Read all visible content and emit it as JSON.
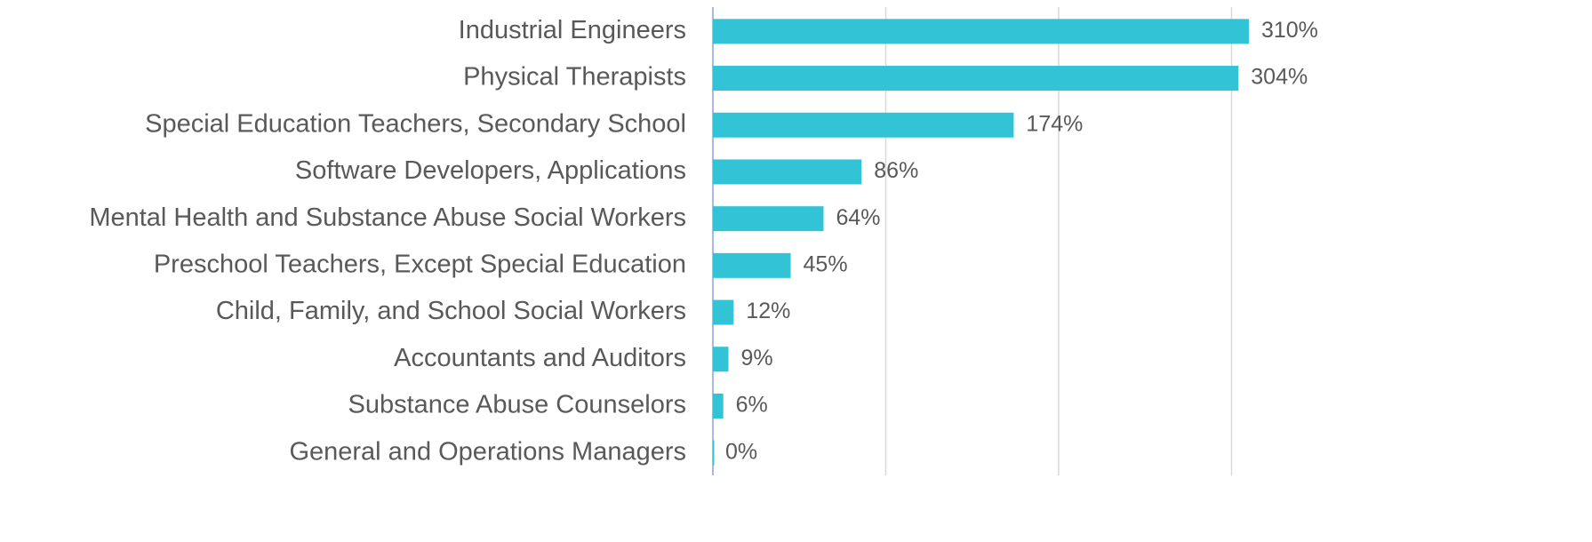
{
  "chart_data": {
    "type": "bar",
    "orientation": "horizontal",
    "categories": [
      "Industrial Engineers",
      "Physical Therapists",
      "Special Education Teachers, Secondary School",
      "Software Developers, Applications",
      "Mental Health and Substance Abuse Social Workers",
      "Preschool Teachers, Except Special Education",
      "Child, Family, and School Social Workers",
      "Accountants and Auditors",
      "Substance Abuse Counselors",
      "General and Operations Managers"
    ],
    "values": [
      310,
      304,
      174,
      86,
      64,
      45,
      12,
      9,
      6,
      0
    ],
    "value_labels": [
      "310%",
      "304%",
      "174%",
      "86%",
      "64%",
      "45%",
      "12%",
      "9%",
      "6%",
      "0%"
    ],
    "color": "#33c3d6",
    "xlim": [
      0,
      400
    ],
    "xticks": [
      0,
      100,
      200,
      300
    ],
    "grid": true
  }
}
